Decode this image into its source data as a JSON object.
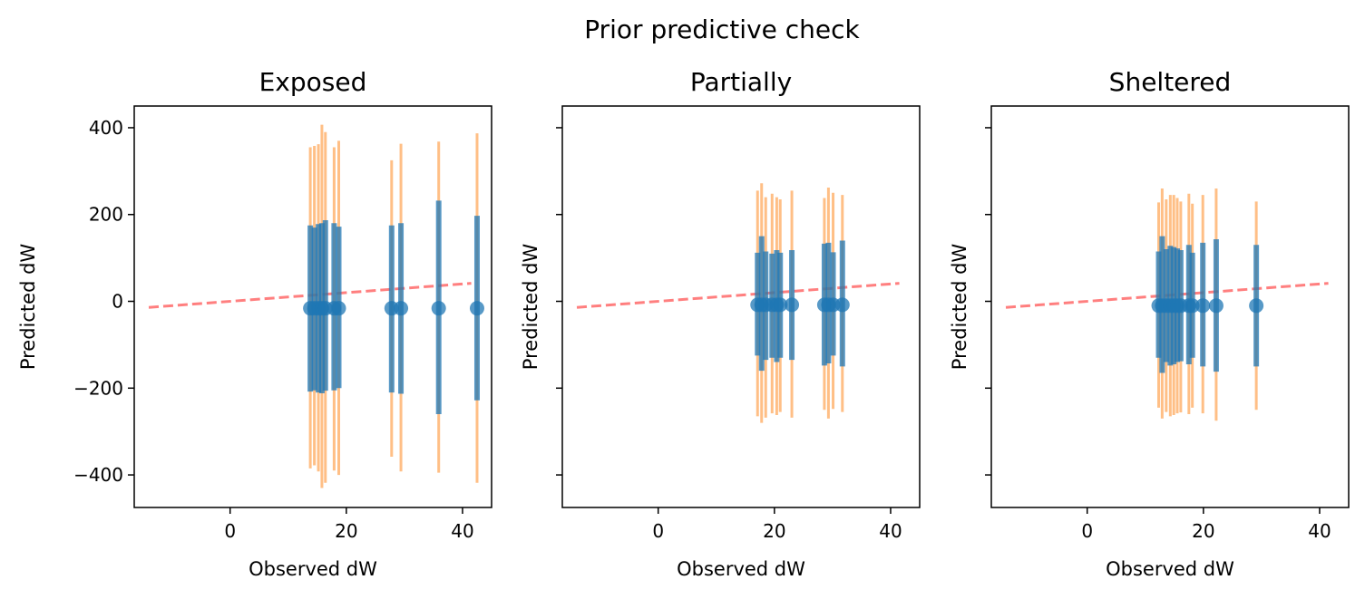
{
  "chart_data": {
    "type": "scatter",
    "title": "Prior predictive check",
    "colors": {
      "point": "#1f77b4",
      "band_outer": "#ff7f0e",
      "reference": "#ff0000",
      "frame": "#000000"
    },
    "axes_shared_y": true,
    "panels": [
      {
        "title": "Exposed",
        "xlabel": "Observed dW",
        "ylabel": "Predicted dW",
        "xlim": [
          -16.5,
          45
        ],
        "ylim": [
          -475,
          450
        ],
        "xticks": [
          0,
          20,
          40
        ],
        "yticks": [
          -400,
          -200,
          0,
          200,
          400
        ],
        "show_ytick_labels": true,
        "reference_line": {
          "x": [
            -14,
            41.5
          ],
          "y": [
            -14,
            41.5
          ]
        },
        "points": [
          {
            "x": 13.8,
            "y": -16,
            "lo50": -208,
            "hi50": 175,
            "lo94": -385,
            "hi94": 355
          },
          {
            "x": 14.5,
            "y": -16,
            "lo50": -205,
            "hi50": 170,
            "lo94": -378,
            "hi94": 358
          },
          {
            "x": 15.2,
            "y": -16,
            "lo50": -210,
            "hi50": 178,
            "lo94": -392,
            "hi94": 362
          },
          {
            "x": 15.8,
            "y": -16,
            "lo50": -212,
            "hi50": 180,
            "lo94": -430,
            "hi94": 407
          },
          {
            "x": 16.4,
            "y": -16,
            "lo50": -206,
            "hi50": 187,
            "lo94": -418,
            "hi94": 390
          },
          {
            "x": 17.9,
            "y": -16,
            "lo50": -205,
            "hi50": 180,
            "lo94": -390,
            "hi94": 355
          },
          {
            "x": 18.7,
            "y": -16,
            "lo50": -200,
            "hi50": 172,
            "lo94": -400,
            "hi94": 370
          },
          {
            "x": 27.8,
            "y": -16,
            "lo50": -210,
            "hi50": 175,
            "lo94": -358,
            "hi94": 325
          },
          {
            "x": 29.4,
            "y": -16,
            "lo50": -213,
            "hi50": 180,
            "lo94": -392,
            "hi94": 363
          },
          {
            "x": 35.9,
            "y": -16,
            "lo50": -260,
            "hi50": 232,
            "lo94": -395,
            "hi94": 368
          },
          {
            "x": 42.5,
            "y": -16,
            "lo50": -228,
            "hi50": 197,
            "lo94": -418,
            "hi94": 387
          }
        ]
      },
      {
        "title": "Partially",
        "xlabel": "Observed dW",
        "ylabel": "Predicted dW",
        "xlim": [
          -16.5,
          45
        ],
        "ylim": [
          -475,
          450
        ],
        "xticks": [
          0,
          20,
          40
        ],
        "yticks": [
          -400,
          -200,
          0,
          200,
          400
        ],
        "show_ytick_labels": false,
        "reference_line": {
          "x": [
            -14,
            41.5
          ],
          "y": [
            -14,
            41.5
          ]
        },
        "points": [
          {
            "x": 17.1,
            "y": -8,
            "lo50": -125,
            "hi50": 112,
            "lo94": -265,
            "hi94": 255
          },
          {
            "x": 17.8,
            "y": -8,
            "lo50": -160,
            "hi50": 150,
            "lo94": -280,
            "hi94": 272
          },
          {
            "x": 18.5,
            "y": -8,
            "lo50": -135,
            "hi50": 115,
            "lo94": -268,
            "hi94": 240
          },
          {
            "x": 19.6,
            "y": -8,
            "lo50": -130,
            "hi50": 110,
            "lo94": -258,
            "hi94": 248
          },
          {
            "x": 20.4,
            "y": -8,
            "lo50": -140,
            "hi50": 118,
            "lo94": -262,
            "hi94": 240
          },
          {
            "x": 21.0,
            "y": -8,
            "lo50": -130,
            "hi50": 112,
            "lo94": -255,
            "hi94": 235
          },
          {
            "x": 23.0,
            "y": -8,
            "lo50": -135,
            "hi50": 118,
            "lo94": -268,
            "hi94": 255
          },
          {
            "x": 28.6,
            "y": -8,
            "lo50": -148,
            "hi50": 133,
            "lo94": -250,
            "hi94": 238
          },
          {
            "x": 29.3,
            "y": -8,
            "lo50": -143,
            "hi50": 135,
            "lo94": -270,
            "hi94": 262
          },
          {
            "x": 30.1,
            "y": -8,
            "lo50": -125,
            "hi50": 113,
            "lo94": -248,
            "hi94": 250
          },
          {
            "x": 31.7,
            "y": -8,
            "lo50": -150,
            "hi50": 140,
            "lo94": -255,
            "hi94": 245
          }
        ]
      },
      {
        "title": "Sheltered",
        "xlabel": "Observed dW",
        "ylabel": "Predicted dW",
        "xlim": [
          -16.5,
          45
        ],
        "ylim": [
          -475,
          450
        ],
        "xticks": [
          0,
          20,
          40
        ],
        "yticks": [
          -400,
          -200,
          0,
          200,
          400
        ],
        "show_ytick_labels": false,
        "reference_line": {
          "x": [
            -14,
            41.5
          ],
          "y": [
            -14,
            41.5
          ]
        },
        "points": [
          {
            "x": 12.3,
            "y": -10,
            "lo50": -130,
            "hi50": 115,
            "lo94": -245,
            "hi94": 228
          },
          {
            "x": 12.9,
            "y": -10,
            "lo50": -165,
            "hi50": 150,
            "lo94": -270,
            "hi94": 260
          },
          {
            "x": 13.6,
            "y": -10,
            "lo50": -140,
            "hi50": 120,
            "lo94": -255,
            "hi94": 235
          },
          {
            "x": 14.3,
            "y": -10,
            "lo50": -148,
            "hi50": 128,
            "lo94": -265,
            "hi94": 245
          },
          {
            "x": 14.9,
            "y": -10,
            "lo50": -145,
            "hi50": 125,
            "lo94": -262,
            "hi94": 245
          },
          {
            "x": 15.5,
            "y": -10,
            "lo50": -140,
            "hi50": 122,
            "lo94": -258,
            "hi94": 238
          },
          {
            "x": 16.1,
            "y": -10,
            "lo50": -138,
            "hi50": 118,
            "lo94": -256,
            "hi94": 230
          },
          {
            "x": 17.5,
            "y": -10,
            "lo50": -145,
            "hi50": 130,
            "lo94": -260,
            "hi94": 248
          },
          {
            "x": 18.1,
            "y": -10,
            "lo50": -130,
            "hi50": 112,
            "lo94": -245,
            "hi94": 225
          },
          {
            "x": 19.9,
            "y": -10,
            "lo50": -150,
            "hi50": 135,
            "lo94": -258,
            "hi94": 245
          },
          {
            "x": 22.2,
            "y": -10,
            "lo50": -162,
            "hi50": 143,
            "lo94": -275,
            "hi94": 260
          },
          {
            "x": 29.1,
            "y": -10,
            "lo50": -150,
            "hi50": 130,
            "lo94": -250,
            "hi94": 230
          }
        ]
      }
    ]
  }
}
